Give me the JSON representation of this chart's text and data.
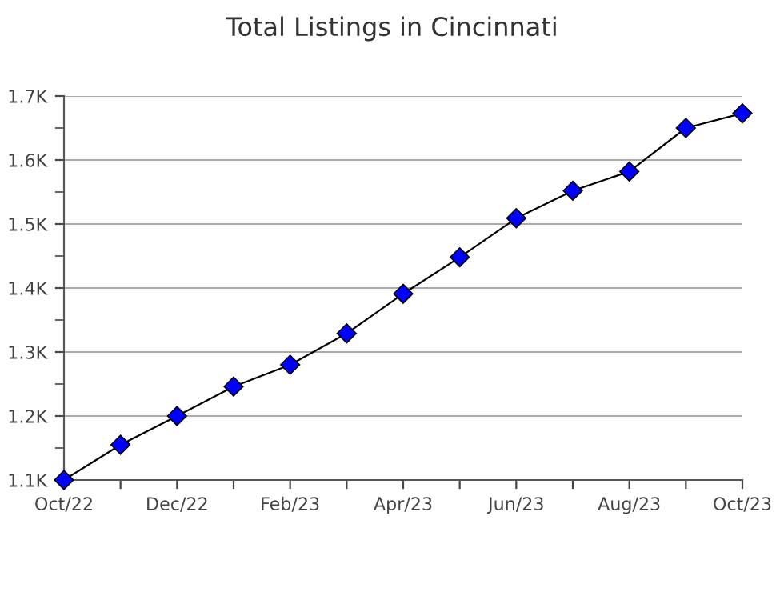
{
  "chart_data": {
    "type": "line",
    "title": "Total Listings in Cincinnati",
    "categories": [
      "Oct/22",
      null,
      "Dec/22",
      null,
      "Feb/23",
      null,
      "Apr/23",
      null,
      "Jun/23",
      null,
      "Aug/23",
      null,
      "Oct/23"
    ],
    "series": [
      {
        "color": "#0000ff",
        "values": [
          1100,
          1155,
          1200,
          1246,
          1280,
          1329,
          1391,
          1448,
          1509,
          1552,
          1582,
          1650,
          1673
        ]
      }
    ],
    "ylim": [
      1100,
      1700
    ],
    "yticks": [
      {
        "value": 1100,
        "label": "1.1K"
      },
      {
        "value": 1150,
        "label": null
      },
      {
        "value": 1200,
        "label": "1.2K"
      },
      {
        "value": 1250,
        "label": null
      },
      {
        "value": 1300,
        "label": "1.3K"
      },
      {
        "value": 1350,
        "label": null
      },
      {
        "value": 1400,
        "label": "1.4K"
      },
      {
        "value": 1450,
        "label": null
      },
      {
        "value": 1500,
        "label": "1.5K"
      },
      {
        "value": 1550,
        "label": null
      },
      {
        "value": 1600,
        "label": "1.6K"
      },
      {
        "value": 1650,
        "label": null
      },
      {
        "value": 1700,
        "label": "1.7K"
      }
    ],
    "grid": "y",
    "marker": "diamond",
    "line_style": "solid",
    "legend": false
  }
}
